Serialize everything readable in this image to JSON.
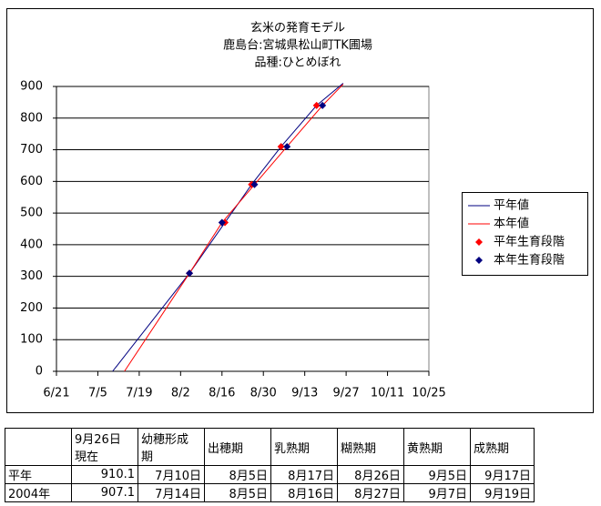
{
  "chart_data": {
    "type": "line",
    "title": [
      "玄米の発育モデル",
      "鹿島台:宮城県松山町TK圃場",
      "品種:ひとめぼれ"
    ],
    "xlim": [
      173,
      299
    ],
    "xticks": [
      {
        "value": 173,
        "label": "6/21"
      },
      {
        "value": 187,
        "label": "7/5"
      },
      {
        "value": 201,
        "label": "7/19"
      },
      {
        "value": 215,
        "label": "8/2"
      },
      {
        "value": 229,
        "label": "8/16"
      },
      {
        "value": 243,
        "label": "8/30"
      },
      {
        "value": 257,
        "label": "9/13"
      },
      {
        "value": 271,
        "label": "9/27"
      },
      {
        "value": 285,
        "label": "10/11"
      },
      {
        "value": 299,
        "label": "10/25"
      }
    ],
    "ylim": [
      0,
      900
    ],
    "yticks": [
      0,
      100,
      200,
      300,
      400,
      500,
      600,
      700,
      800,
      900
    ],
    "grid": true,
    "legend": "right",
    "series": [
      {
        "name": "平年値",
        "type": "line",
        "color": "#000080",
        "x": [
          192,
          218,
          230,
          239,
          249,
          261,
          270
        ],
        "values": [
          0,
          310,
          470,
          590,
          710,
          840,
          910
        ]
      },
      {
        "name": "本年値",
        "type": "line",
        "color": "#ff0000",
        "x": [
          196,
          218,
          229,
          240,
          251,
          263,
          270
        ],
        "values": [
          0,
          310,
          470,
          590,
          710,
          840,
          907
        ]
      },
      {
        "name": "平年生育段階",
        "type": "scatter",
        "color": "#ff0000",
        "x": [
          218,
          230,
          239,
          249,
          261
        ],
        "values": [
          310,
          470,
          590,
          710,
          840
        ]
      },
      {
        "name": "本年生育段階",
        "type": "scatter",
        "color": "#000080",
        "x": [
          218,
          229,
          240,
          251,
          263
        ],
        "values": [
          310,
          470,
          590,
          710,
          840
        ]
      }
    ]
  },
  "table": {
    "header": [
      "9月26日\n現在",
      "幼穂形成\n期",
      "出穂期",
      "乳熟期",
      "糊熟期",
      "黄熟期",
      "成熟期"
    ],
    "rows": [
      [
        "平年",
        "910.1",
        "7月10日",
        "8月5日",
        "8月17日",
        "8月26日",
        "9月5日",
        "9月17日"
      ],
      [
        "2004年",
        "907.1",
        "7月14日",
        "8月5日",
        "8月16日",
        "8月27日",
        "9月7日",
        "9月19日"
      ]
    ]
  }
}
